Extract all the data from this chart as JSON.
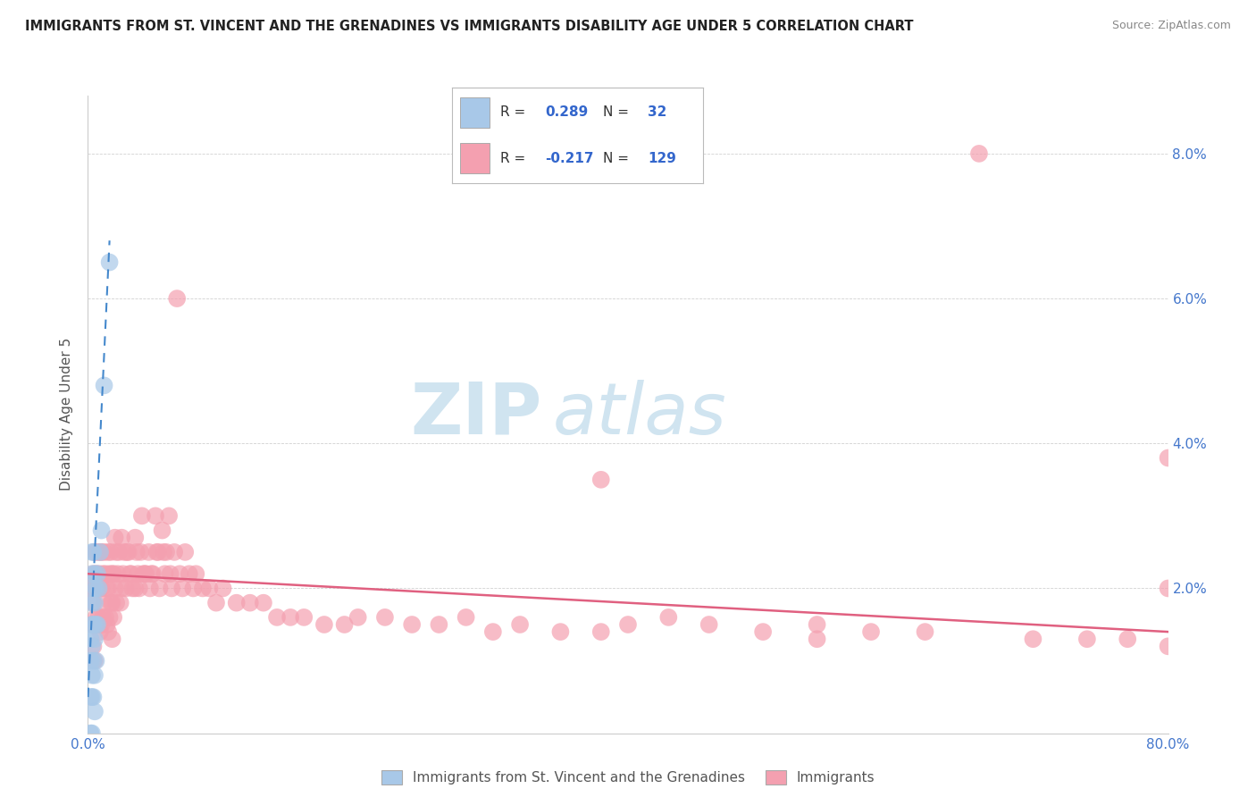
{
  "title": "IMMIGRANTS FROM ST. VINCENT AND THE GRENADINES VS IMMIGRANTS DISABILITY AGE UNDER 5 CORRELATION CHART",
  "source": "Source: ZipAtlas.com",
  "ylabel": "Disability Age Under 5",
  "xlim": [
    0.0,
    0.8
  ],
  "ylim": [
    0.0,
    0.088
  ],
  "xticks": [
    0.0,
    0.1,
    0.2,
    0.3,
    0.4,
    0.5,
    0.6,
    0.7,
    0.8
  ],
  "xticklabels": [
    "0.0%",
    "",
    "",
    "",
    "",
    "",
    "",
    "",
    "80.0%"
  ],
  "yticks_left": [
    0.0,
    0.02,
    0.04,
    0.06,
    0.08
  ],
  "yticks_right": [
    0.02,
    0.04,
    0.06,
    0.08
  ],
  "yticklabels_right": [
    "2.0%",
    "4.0%",
    "6.0%",
    "8.0%"
  ],
  "legend_blue_r": "0.289",
  "legend_blue_n": "32",
  "legend_pink_r": "-0.217",
  "legend_pink_n": "129",
  "blue_scatter_color": "#a8c8e8",
  "pink_scatter_color": "#f4a0b0",
  "blue_line_color": "#4488cc",
  "pink_line_color": "#e06080",
  "watermark_zip": "ZIP",
  "watermark_atlas": "atlas",
  "blue_scatter_x": [
    0.002,
    0.002,
    0.002,
    0.002,
    0.003,
    0.003,
    0.003,
    0.003,
    0.003,
    0.003,
    0.003,
    0.003,
    0.004,
    0.004,
    0.004,
    0.004,
    0.004,
    0.005,
    0.005,
    0.005,
    0.005,
    0.005,
    0.006,
    0.006,
    0.006,
    0.007,
    0.007,
    0.008,
    0.009,
    0.01,
    0.012,
    0.016
  ],
  "blue_scatter_y": [
    0.0,
    0.005,
    0.01,
    0.013,
    0.0,
    0.005,
    0.008,
    0.012,
    0.015,
    0.018,
    0.022,
    0.025,
    0.005,
    0.01,
    0.015,
    0.02,
    0.025,
    0.003,
    0.008,
    0.013,
    0.018,
    0.022,
    0.01,
    0.015,
    0.02,
    0.015,
    0.022,
    0.02,
    0.025,
    0.028,
    0.048,
    0.065
  ],
  "pink_scatter_x": [
    0.003,
    0.003,
    0.004,
    0.004,
    0.004,
    0.005,
    0.005,
    0.005,
    0.005,
    0.006,
    0.006,
    0.007,
    0.007,
    0.007,
    0.008,
    0.008,
    0.009,
    0.009,
    0.009,
    0.01,
    0.01,
    0.01,
    0.011,
    0.011,
    0.012,
    0.012,
    0.013,
    0.013,
    0.014,
    0.014,
    0.015,
    0.015,
    0.015,
    0.016,
    0.016,
    0.017,
    0.017,
    0.018,
    0.018,
    0.018,
    0.019,
    0.019,
    0.02,
    0.02,
    0.021,
    0.021,
    0.022,
    0.023,
    0.024,
    0.025,
    0.025,
    0.026,
    0.027,
    0.028,
    0.029,
    0.03,
    0.031,
    0.032,
    0.033,
    0.035,
    0.035,
    0.036,
    0.037,
    0.038,
    0.039,
    0.04,
    0.041,
    0.042,
    0.043,
    0.045,
    0.046,
    0.047,
    0.048,
    0.05,
    0.051,
    0.052,
    0.053,
    0.055,
    0.056,
    0.057,
    0.058,
    0.06,
    0.061,
    0.062,
    0.064,
    0.066,
    0.068,
    0.07,
    0.072,
    0.075,
    0.078,
    0.08,
    0.085,
    0.09,
    0.095,
    0.1,
    0.11,
    0.12,
    0.13,
    0.14,
    0.15,
    0.16,
    0.175,
    0.19,
    0.2,
    0.22,
    0.24,
    0.26,
    0.28,
    0.3,
    0.32,
    0.35,
    0.38,
    0.4,
    0.43,
    0.46,
    0.5,
    0.54,
    0.58,
    0.62,
    0.66,
    0.7,
    0.74,
    0.77,
    0.8,
    0.8,
    0.8,
    0.54,
    0.38
  ],
  "pink_scatter_y": [
    0.02,
    0.015,
    0.022,
    0.018,
    0.012,
    0.025,
    0.02,
    0.015,
    0.01,
    0.022,
    0.016,
    0.025,
    0.02,
    0.015,
    0.022,
    0.016,
    0.025,
    0.02,
    0.014,
    0.025,
    0.02,
    0.015,
    0.022,
    0.016,
    0.025,
    0.018,
    0.022,
    0.016,
    0.02,
    0.015,
    0.025,
    0.02,
    0.014,
    0.022,
    0.016,
    0.025,
    0.018,
    0.022,
    0.018,
    0.013,
    0.022,
    0.016,
    0.027,
    0.02,
    0.025,
    0.018,
    0.022,
    0.025,
    0.018,
    0.027,
    0.02,
    0.022,
    0.025,
    0.02,
    0.025,
    0.025,
    0.022,
    0.022,
    0.02,
    0.027,
    0.02,
    0.025,
    0.022,
    0.02,
    0.025,
    0.03,
    0.022,
    0.022,
    0.022,
    0.025,
    0.02,
    0.022,
    0.022,
    0.03,
    0.025,
    0.025,
    0.02,
    0.028,
    0.025,
    0.022,
    0.025,
    0.03,
    0.022,
    0.02,
    0.025,
    0.06,
    0.022,
    0.02,
    0.025,
    0.022,
    0.02,
    0.022,
    0.02,
    0.02,
    0.018,
    0.02,
    0.018,
    0.018,
    0.018,
    0.016,
    0.016,
    0.016,
    0.015,
    0.015,
    0.016,
    0.016,
    0.015,
    0.015,
    0.016,
    0.014,
    0.015,
    0.014,
    0.014,
    0.015,
    0.016,
    0.015,
    0.014,
    0.015,
    0.014,
    0.014,
    0.08,
    0.013,
    0.013,
    0.013,
    0.012,
    0.038,
    0.02,
    0.013,
    0.035
  ],
  "blue_trend_x0": 0.0,
  "blue_trend_x1": 0.016,
  "blue_trend_y0": 0.005,
  "blue_trend_y1": 0.068,
  "pink_trend_x0": 0.0,
  "pink_trend_x1": 0.8,
  "pink_trend_y0": 0.022,
  "pink_trend_y1": 0.014
}
